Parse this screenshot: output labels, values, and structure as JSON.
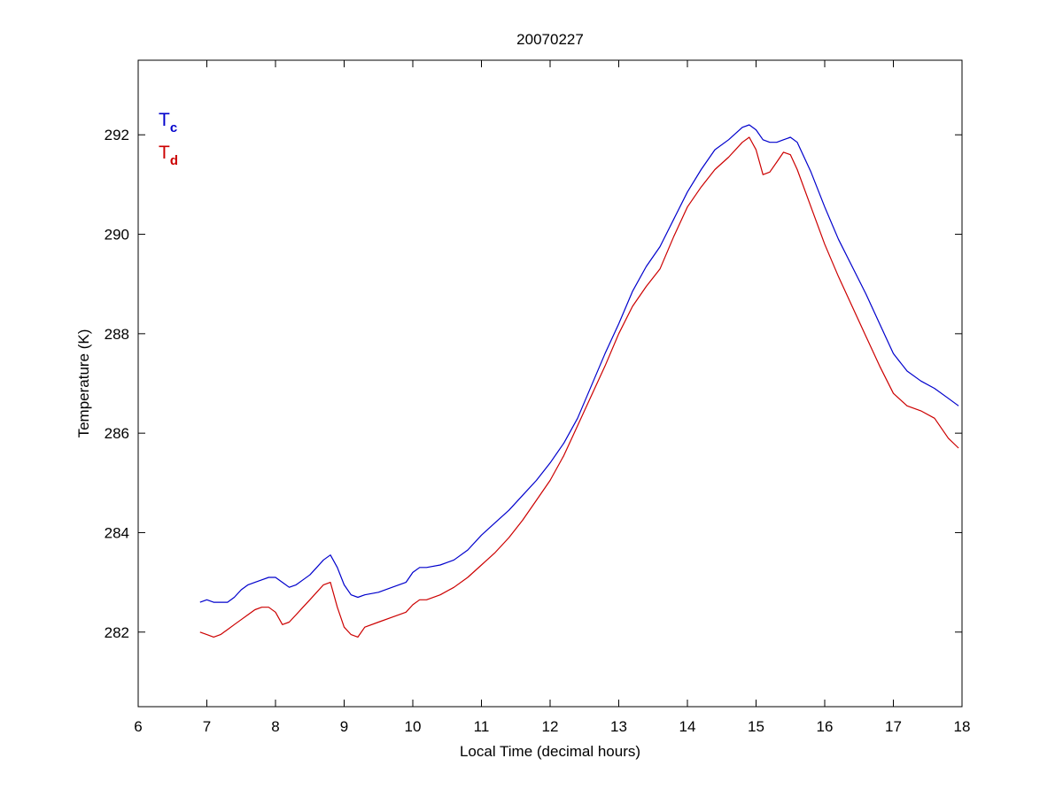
{
  "chart_data": {
    "type": "line",
    "title": "20070227",
    "xlabel": "Local Time (decimal hours)",
    "ylabel": "Temperature (K)",
    "xlim": [
      6,
      18
    ],
    "ylim": [
      280.5,
      293.5
    ],
    "xticks": [
      6,
      7,
      8,
      9,
      10,
      11,
      12,
      13,
      14,
      15,
      16,
      17,
      18
    ],
    "yticks": [
      282,
      284,
      286,
      288,
      290,
      292
    ],
    "grid": false,
    "legend_position": "top-left",
    "series": [
      {
        "name": "T",
        "subscript": "c",
        "color": "#0000cc",
        "x": [
          6.9,
          7.0,
          7.1,
          7.2,
          7.3,
          7.4,
          7.5,
          7.6,
          7.7,
          7.8,
          7.9,
          8.0,
          8.1,
          8.2,
          8.3,
          8.4,
          8.5,
          8.6,
          8.7,
          8.8,
          8.9,
          9.0,
          9.1,
          9.2,
          9.3,
          9.5,
          9.7,
          9.9,
          10.0,
          10.1,
          10.2,
          10.4,
          10.6,
          10.8,
          11.0,
          11.2,
          11.4,
          11.6,
          11.8,
          12.0,
          12.2,
          12.4,
          12.6,
          12.8,
          13.0,
          13.2,
          13.4,
          13.6,
          13.8,
          14.0,
          14.2,
          14.4,
          14.6,
          14.8,
          14.9,
          15.0,
          15.1,
          15.2,
          15.3,
          15.4,
          15.5,
          15.6,
          15.8,
          16.0,
          16.2,
          16.4,
          16.6,
          16.8,
          17.0,
          17.2,
          17.4,
          17.6,
          17.8,
          17.95
        ],
        "y": [
          282.6,
          282.65,
          282.6,
          282.6,
          282.6,
          282.7,
          282.85,
          282.95,
          283.0,
          283.05,
          283.1,
          283.1,
          283.0,
          282.9,
          282.95,
          283.05,
          283.15,
          283.3,
          283.45,
          283.55,
          283.3,
          282.95,
          282.75,
          282.7,
          282.75,
          282.8,
          282.9,
          283.0,
          283.2,
          283.3,
          283.3,
          283.35,
          283.45,
          283.65,
          283.95,
          284.2,
          284.45,
          284.75,
          285.05,
          285.4,
          285.8,
          286.3,
          286.95,
          287.6,
          288.2,
          288.85,
          289.35,
          289.75,
          290.3,
          290.85,
          291.3,
          291.7,
          291.9,
          292.15,
          292.2,
          292.1,
          291.9,
          291.85,
          291.85,
          291.9,
          291.95,
          291.85,
          291.25,
          290.55,
          289.9,
          289.35,
          288.8,
          288.2,
          287.6,
          287.25,
          287.05,
          286.9,
          286.7,
          286.55
        ]
      },
      {
        "name": "T",
        "subscript": "d",
        "color": "#cc0000",
        "x": [
          6.9,
          7.0,
          7.1,
          7.2,
          7.3,
          7.4,
          7.5,
          7.6,
          7.7,
          7.8,
          7.9,
          8.0,
          8.1,
          8.2,
          8.3,
          8.4,
          8.5,
          8.6,
          8.7,
          8.8,
          8.9,
          9.0,
          9.1,
          9.2,
          9.3,
          9.5,
          9.7,
          9.9,
          10.0,
          10.1,
          10.2,
          10.4,
          10.6,
          10.8,
          11.0,
          11.2,
          11.4,
          11.6,
          11.8,
          12.0,
          12.2,
          12.4,
          12.6,
          12.8,
          13.0,
          13.2,
          13.4,
          13.6,
          13.8,
          14.0,
          14.2,
          14.4,
          14.6,
          14.8,
          14.9,
          15.0,
          15.1,
          15.2,
          15.3,
          15.4,
          15.5,
          15.6,
          15.8,
          16.0,
          16.2,
          16.4,
          16.6,
          16.8,
          17.0,
          17.2,
          17.4,
          17.6,
          17.8,
          17.95
        ],
        "y": [
          282.0,
          281.95,
          281.9,
          281.95,
          282.05,
          282.15,
          282.25,
          282.35,
          282.45,
          282.5,
          282.5,
          282.4,
          282.15,
          282.2,
          282.35,
          282.5,
          282.65,
          282.8,
          282.95,
          283.0,
          282.5,
          282.1,
          281.95,
          281.9,
          282.1,
          282.2,
          282.3,
          282.4,
          282.55,
          282.65,
          282.65,
          282.75,
          282.9,
          283.1,
          283.35,
          283.6,
          283.9,
          284.25,
          284.65,
          285.05,
          285.55,
          286.15,
          286.75,
          287.35,
          288.0,
          288.55,
          288.95,
          289.3,
          289.95,
          290.55,
          290.95,
          291.3,
          291.55,
          291.85,
          291.95,
          291.7,
          291.2,
          291.25,
          291.45,
          291.65,
          291.6,
          291.3,
          290.55,
          289.8,
          289.15,
          288.55,
          287.95,
          287.35,
          286.8,
          286.55,
          286.45,
          286.3,
          285.9,
          285.7
        ]
      }
    ]
  }
}
